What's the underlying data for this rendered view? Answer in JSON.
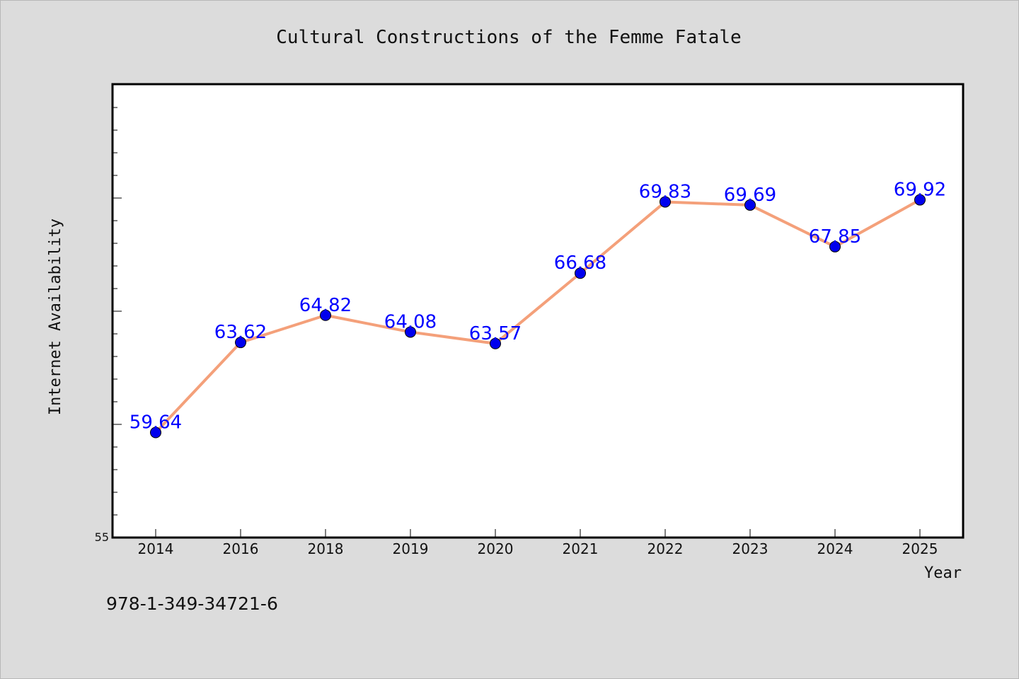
{
  "chart_data": {
    "type": "line",
    "title": "Cultural Constructions of the Femme Fatale",
    "xlabel": "Year",
    "ylabel": "Internet Availability",
    "categories": [
      "2014",
      "2016",
      "2018",
      "2019",
      "2020",
      "2021",
      "2022",
      "2023",
      "2024",
      "2025"
    ],
    "values": [
      59.64,
      63.62,
      64.82,
      64.08,
      63.57,
      66.68,
      69.83,
      69.69,
      67.85,
      69.92
    ],
    "data_labels": [
      "59.64",
      "63.62",
      "64.82",
      "64.08",
      "63.57",
      "66.68",
      "69.83",
      "69.69",
      "67.85",
      "69.92"
    ],
    "y_tick_labels": [
      "55"
    ],
    "ylim": [
      55,
      75
    ],
    "grid": false,
    "colors": {
      "line": "#f4a07a",
      "marker": "#0000ee",
      "label": "#0000ff",
      "background": "#dcdcdc",
      "plot_background": "#ffffff"
    }
  },
  "footer_text": "978-1-349-34721-6"
}
